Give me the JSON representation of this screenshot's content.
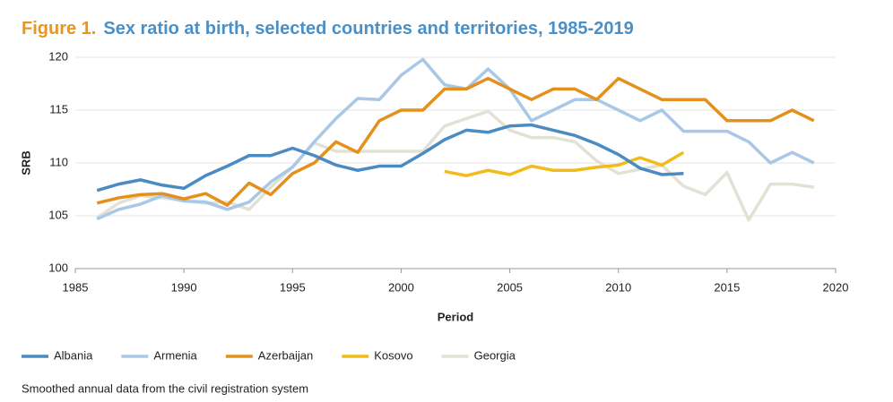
{
  "chart_data": {
    "type": "line",
    "figure_label": "Figure 1.",
    "title": "Sex ratio at birth, selected countries and territories, 1985-2019",
    "x_label": "Period",
    "y_label": "SRB",
    "note": "Smoothed annual data from the civil registration system",
    "x": [
      1986,
      1987,
      1988,
      1989,
      1990,
      1991,
      1992,
      1993,
      1994,
      1995,
      1996,
      1997,
      1998,
      1999,
      2000,
      2001,
      2002,
      2003,
      2004,
      2005,
      2006,
      2007,
      2008,
      2009,
      2010,
      2011,
      2012,
      2013,
      2014,
      2015,
      2016,
      2017,
      2018,
      2019
    ],
    "xlim": [
      1985,
      2020
    ],
    "xticks": [
      1985,
      1990,
      1995,
      2000,
      2005,
      2010,
      2015,
      2020
    ],
    "ylim": [
      100,
      120
    ],
    "yticks": [
      100,
      105,
      110,
      115,
      120
    ],
    "grid": true,
    "legend": "bottom",
    "series": [
      {
        "name": "Albania",
        "color": "#4a8bc4",
        "values": [
          107.4,
          108.0,
          108.4,
          107.9,
          107.6,
          108.8,
          109.7,
          110.7,
          110.7,
          111.4,
          110.7,
          109.8,
          109.3,
          109.7,
          109.7,
          110.9,
          112.2,
          113.1,
          112.9,
          113.5,
          113.6,
          113.1,
          112.6,
          111.8,
          110.8,
          109.5,
          108.9,
          109.0,
          null,
          null,
          null,
          null,
          null,
          null
        ]
      },
      {
        "name": "Armenia",
        "color": "#a9c7e6",
        "values": [
          104.7,
          105.6,
          106.1,
          106.9,
          106.4,
          106.3,
          105.6,
          106.3,
          108.2,
          109.6,
          112.0,
          114.2,
          116.1,
          116.0,
          118.3,
          119.8,
          117.4,
          117.0,
          118.9,
          117.0,
          114.0,
          115.0,
          116.0,
          116.0,
          115.0,
          114.0,
          115.0,
          113.0,
          113.0,
          113.0,
          112.0,
          110.0,
          111.0,
          110.0
        ]
      },
      {
        "name": "Azerbaijan",
        "color": "#e3911c",
        "values": [
          106.2,
          106.7,
          107.0,
          107.1,
          106.6,
          107.1,
          106.0,
          108.1,
          107.0,
          109.0,
          110.0,
          112.0,
          111.0,
          114.0,
          115.0,
          115.0,
          117.0,
          117.0,
          118.0,
          117.0,
          116.0,
          117.0,
          117.0,
          116.0,
          118.0,
          117.0,
          116.0,
          116.0,
          116.0,
          114.0,
          114.0,
          114.0,
          115.0,
          114.0
        ]
      },
      {
        "name": "Kosovo",
        "color": "#f1bb1a",
        "values": [
          null,
          null,
          null,
          null,
          null,
          null,
          null,
          null,
          null,
          null,
          null,
          null,
          null,
          null,
          null,
          null,
          109.2,
          108.8,
          109.3,
          108.9,
          109.7,
          109.3,
          109.3,
          109.6,
          109.8,
          110.5,
          109.8,
          111.0,
          null,
          null,
          null,
          null,
          null,
          null
        ]
      },
      {
        "name": "Georgia",
        "color": "#e2e2d4",
        "values": [
          104.8,
          106.2,
          106.9,
          106.7,
          106.4,
          106.2,
          106.3,
          105.6,
          107.7,
          109.6,
          111.9,
          111.1,
          111.1,
          111.1,
          111.1,
          111.1,
          113.5,
          114.2,
          114.9,
          113.1,
          112.4,
          112.4,
          112.0,
          110.2,
          109.0,
          109.4,
          109.8,
          107.8,
          107.0,
          109.1,
          104.6,
          108.0,
          108.0,
          107.7
        ]
      }
    ]
  }
}
